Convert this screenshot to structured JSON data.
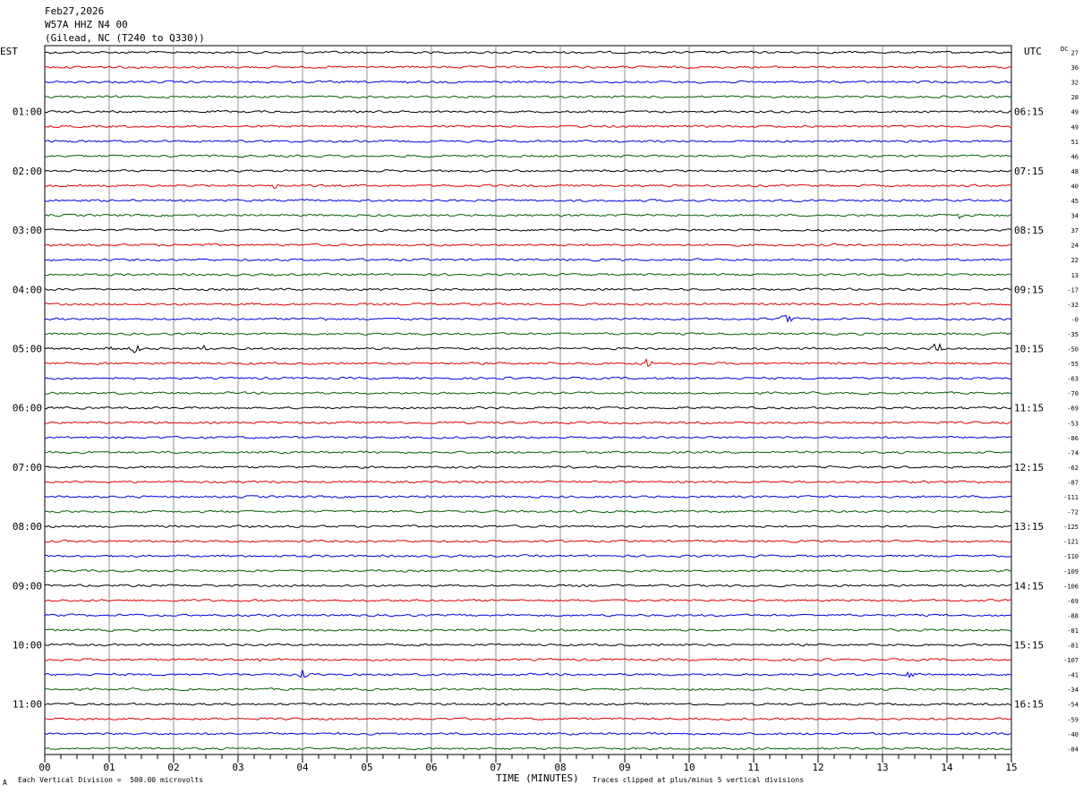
{
  "header": {
    "date": "Feb27,2026",
    "station": "W57A HHZ N4 00",
    "location": "(Gilead, NC (T240 to Q330))"
  },
  "footer": {
    "scale_note": "Each Vertical Division =  500.00 microvolts",
    "clip_note": "Traces clipped at plus/minus 5 vertical divisions",
    "x_title": "TIME (MINUTES)",
    "corner_mark": "A"
  },
  "chart_data": {
    "type": "line",
    "left_tz": "EST",
    "right_tz": "UTC",
    "dc_label": "DC",
    "x_ticks": [
      "00",
      "01",
      "02",
      "03",
      "04",
      "05",
      "06",
      "07",
      "08",
      "09",
      "10",
      "11",
      "12",
      "13",
      "14",
      "15"
    ],
    "xlim": [
      0,
      15
    ],
    "trace_colors": [
      "#000000",
      "#e00000",
      "#0000e0",
      "#006000"
    ],
    "left_hours": [
      "01:00",
      "02:00",
      "03:00",
      "04:00",
      "05:00",
      "06:00",
      "07:00",
      "08:00",
      "09:00",
      "10:00",
      "11:00"
    ],
    "right_hours": [
      "06:15",
      "07:15",
      "08:15",
      "09:15",
      "10:15",
      "11:15",
      "12:15",
      "13:15",
      "14:15",
      "15:15",
      "16:15"
    ],
    "dc_offsets": [
      "27",
      "36",
      "32",
      "28",
      "49",
      "49",
      "51",
      "46",
      "48",
      "40",
      "45",
      "34",
      "37",
      "24",
      "22",
      "13",
      "-17",
      "-32",
      "-0",
      "-35",
      "-50",
      "-55",
      "-63",
      "-70",
      "-69",
      "-53",
      "-86",
      "-74",
      "-62",
      "-87",
      "-111",
      "-72",
      "-125",
      "-121",
      "-110",
      "-109",
      "-106",
      "-69",
      "-88",
      "-81",
      "-81",
      "-107",
      "-41",
      "-34",
      "-54",
      "-59",
      "-40",
      "-84"
    ],
    "events": [
      {
        "trace": 9,
        "minute": 3.6,
        "amp": 4
      },
      {
        "trace": 11,
        "minute": 14.2,
        "amp": 4
      },
      {
        "trace": 18,
        "minute": 4.35,
        "amp": 4
      },
      {
        "trace": 18,
        "minute": 4.9,
        "amp": 3
      },
      {
        "trace": 18,
        "minute": 11.5,
        "amp": 7
      },
      {
        "trace": 20,
        "minute": 1.0,
        "amp": 4
      },
      {
        "trace": 20,
        "minute": 1.4,
        "amp": 6
      },
      {
        "trace": 20,
        "minute": 2.5,
        "amp": 3
      },
      {
        "trace": 20,
        "minute": 5.0,
        "amp": 3
      },
      {
        "trace": 20,
        "minute": 13.85,
        "amp": 8
      },
      {
        "trace": 21,
        "minute": 9.35,
        "amp": 5
      },
      {
        "trace": 41,
        "minute": 3.3,
        "amp": 3
      },
      {
        "trace": 42,
        "minute": 4.0,
        "amp": 5
      },
      {
        "trace": 42,
        "minute": 13.4,
        "amp": 5
      }
    ]
  }
}
